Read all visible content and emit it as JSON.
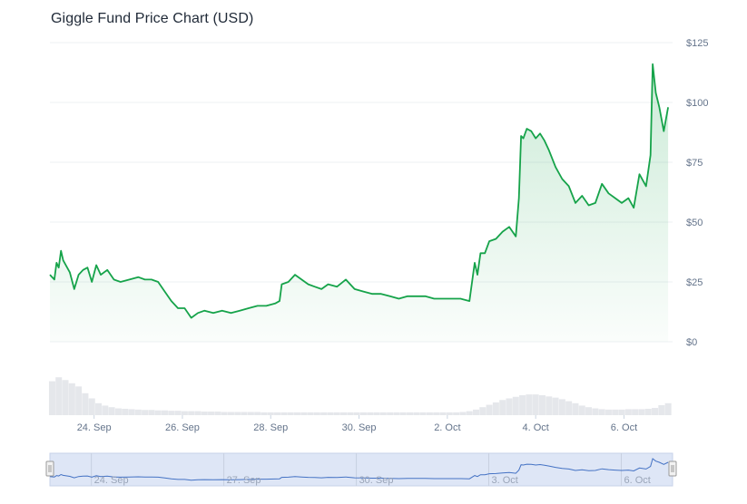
{
  "title": "Giggle Fund Price Chart (USD)",
  "colors": {
    "line": "#16a34a",
    "area_top": "#16a34a",
    "grid": "#eef0f3",
    "volume": "#e5e7eb",
    "navigator_fill": "#dbe4f5",
    "navigator_line": "#4472c4"
  },
  "chart_data": {
    "type": "area",
    "title": "Giggle Fund Price Chart (USD)",
    "xlabel": "",
    "ylabel": "",
    "ylim": [
      0,
      125
    ],
    "grid": true,
    "y_ticks": [
      0,
      25,
      50,
      75,
      100,
      125
    ],
    "y_tick_labels": [
      "$0",
      "$25",
      "$50",
      "$75",
      "$100",
      "$125"
    ],
    "x_ticks": [
      "24. Sep",
      "26. Sep",
      "28. Sep",
      "30. Sep",
      "2. Oct",
      "4. Oct",
      "6. Oct"
    ],
    "x_ticks_pos": [
      1,
      3,
      5,
      7,
      9,
      11,
      13
    ],
    "x_range": [
      0,
      14.1
    ],
    "navigator_ticks": [
      "24. Sep",
      "27. Sep",
      "30. Sep",
      "3. Oct",
      "6. Oct"
    ],
    "navigator_ticks_pos": [
      1,
      4,
      7,
      10,
      13
    ],
    "series": [
      {
        "x": [
          0,
          0.1,
          0.15,
          0.2,
          0.25,
          0.3,
          0.45,
          0.55,
          0.65,
          0.75,
          0.85,
          0.95,
          1.05,
          1.15,
          1.3,
          1.45,
          1.6,
          1.8,
          2.0,
          2.15,
          2.3,
          2.45,
          2.6,
          2.75,
          2.9,
          3.05,
          3.2,
          3.35,
          3.5,
          3.7,
          3.9,
          4.1,
          4.3,
          4.5,
          4.7,
          4.9,
          5.1,
          5.2,
          5.25,
          5.4,
          5.55,
          5.7,
          5.85,
          6.0,
          6.15,
          6.3,
          6.5,
          6.7,
          6.9,
          7.1,
          7.3,
          7.5,
          7.7,
          7.9,
          8.1,
          8.3,
          8.5,
          8.7,
          8.9,
          9.1,
          9.3,
          9.5,
          9.62,
          9.68,
          9.75,
          9.85,
          9.95,
          10.1,
          10.25,
          10.4,
          10.55,
          10.62,
          10.67,
          10.72,
          10.8,
          10.9,
          11.0,
          11.1,
          11.2,
          11.3,
          11.45,
          11.6,
          11.75,
          11.9,
          12.05,
          12.2,
          12.35,
          12.5,
          12.65,
          12.8,
          12.95,
          13.1,
          13.22,
          13.35,
          13.5,
          13.6,
          13.65,
          13.72,
          13.8,
          13.9,
          14.0
        ],
        "values": [
          28,
          26,
          33,
          31,
          38,
          34,
          29,
          22,
          28,
          30,
          31,
          25,
          32,
          28,
          30,
          26,
          25,
          26,
          27,
          26,
          26,
          25,
          21,
          17,
          14,
          14,
          10,
          12,
          13,
          12,
          13,
          12,
          13,
          14,
          15,
          15,
          16,
          17,
          24,
          25,
          28,
          26,
          24,
          23,
          22,
          24,
          23,
          26,
          22,
          21,
          20,
          20,
          19,
          18,
          19,
          19,
          19,
          18,
          18,
          18,
          18,
          17,
          33,
          28,
          37,
          37,
          42,
          43,
          46,
          48,
          44,
          60,
          86,
          85,
          89,
          88,
          85,
          87,
          84,
          80,
          73,
          68,
          65,
          58,
          61,
          57,
          58,
          66,
          62,
          60,
          58,
          60,
          56,
          70,
          65,
          78,
          116,
          104,
          98,
          88,
          98
        ]
      }
    ],
    "volume": [
      {
        "x": 0.05,
        "v": 0.85
      },
      {
        "x": 0.2,
        "v": 0.95
      },
      {
        "x": 0.35,
        "v": 0.88
      },
      {
        "x": 0.5,
        "v": 0.8
      },
      {
        "x": 0.65,
        "v": 0.72
      },
      {
        "x": 0.8,
        "v": 0.55
      },
      {
        "x": 0.95,
        "v": 0.42
      },
      {
        "x": 1.1,
        "v": 0.3
      },
      {
        "x": 1.25,
        "v": 0.24
      },
      {
        "x": 1.4,
        "v": 0.2
      },
      {
        "x": 1.55,
        "v": 0.17
      },
      {
        "x": 1.7,
        "v": 0.16
      },
      {
        "x": 1.85,
        "v": 0.15
      },
      {
        "x": 2.0,
        "v": 0.14
      },
      {
        "x": 2.15,
        "v": 0.13
      },
      {
        "x": 2.3,
        "v": 0.13
      },
      {
        "x": 2.45,
        "v": 0.12
      },
      {
        "x": 2.6,
        "v": 0.12
      },
      {
        "x": 2.75,
        "v": 0.11
      },
      {
        "x": 2.9,
        "v": 0.11
      },
      {
        "x": 3.05,
        "v": 0.1
      },
      {
        "x": 3.2,
        "v": 0.1
      },
      {
        "x": 3.35,
        "v": 0.1
      },
      {
        "x": 3.5,
        "v": 0.09
      },
      {
        "x": 3.65,
        "v": 0.09
      },
      {
        "x": 3.8,
        "v": 0.09
      },
      {
        "x": 3.95,
        "v": 0.08
      },
      {
        "x": 4.1,
        "v": 0.08
      },
      {
        "x": 4.25,
        "v": 0.08
      },
      {
        "x": 4.4,
        "v": 0.08
      },
      {
        "x": 4.55,
        "v": 0.08
      },
      {
        "x": 4.7,
        "v": 0.08
      },
      {
        "x": 4.85,
        "v": 0.07
      },
      {
        "x": 5.0,
        "v": 0.07
      },
      {
        "x": 5.15,
        "v": 0.07
      },
      {
        "x": 5.3,
        "v": 0.07
      },
      {
        "x": 5.45,
        "v": 0.07
      },
      {
        "x": 5.6,
        "v": 0.07
      },
      {
        "x": 5.75,
        "v": 0.07
      },
      {
        "x": 5.9,
        "v": 0.07
      },
      {
        "x": 6.05,
        "v": 0.07
      },
      {
        "x": 6.2,
        "v": 0.07
      },
      {
        "x": 6.35,
        "v": 0.07
      },
      {
        "x": 6.5,
        "v": 0.07
      },
      {
        "x": 6.65,
        "v": 0.07
      },
      {
        "x": 6.8,
        "v": 0.07
      },
      {
        "x": 6.95,
        "v": 0.07
      },
      {
        "x": 7.1,
        "v": 0.07
      },
      {
        "x": 7.25,
        "v": 0.07
      },
      {
        "x": 7.4,
        "v": 0.07
      },
      {
        "x": 7.55,
        "v": 0.07
      },
      {
        "x": 7.7,
        "v": 0.07
      },
      {
        "x": 7.85,
        "v": 0.07
      },
      {
        "x": 8.0,
        "v": 0.07
      },
      {
        "x": 8.15,
        "v": 0.07
      },
      {
        "x": 8.3,
        "v": 0.07
      },
      {
        "x": 8.45,
        "v": 0.07
      },
      {
        "x": 8.6,
        "v": 0.07
      },
      {
        "x": 8.75,
        "v": 0.07
      },
      {
        "x": 8.9,
        "v": 0.07
      },
      {
        "x": 9.05,
        "v": 0.07
      },
      {
        "x": 9.2,
        "v": 0.07
      },
      {
        "x": 9.35,
        "v": 0.08
      },
      {
        "x": 9.5,
        "v": 0.1
      },
      {
        "x": 9.65,
        "v": 0.14
      },
      {
        "x": 9.8,
        "v": 0.2
      },
      {
        "x": 9.95,
        "v": 0.26
      },
      {
        "x": 10.1,
        "v": 0.32
      },
      {
        "x": 10.25,
        "v": 0.38
      },
      {
        "x": 10.4,
        "v": 0.42
      },
      {
        "x": 10.55,
        "v": 0.46
      },
      {
        "x": 10.7,
        "v": 0.5
      },
      {
        "x": 10.85,
        "v": 0.52
      },
      {
        "x": 11.0,
        "v": 0.52
      },
      {
        "x": 11.15,
        "v": 0.5
      },
      {
        "x": 11.3,
        "v": 0.47
      },
      {
        "x": 11.45,
        "v": 0.44
      },
      {
        "x": 11.6,
        "v": 0.4
      },
      {
        "x": 11.75,
        "v": 0.35
      },
      {
        "x": 11.9,
        "v": 0.3
      },
      {
        "x": 12.05,
        "v": 0.24
      },
      {
        "x": 12.2,
        "v": 0.2
      },
      {
        "x": 12.35,
        "v": 0.17
      },
      {
        "x": 12.5,
        "v": 0.15
      },
      {
        "x": 12.65,
        "v": 0.14
      },
      {
        "x": 12.8,
        "v": 0.14
      },
      {
        "x": 12.95,
        "v": 0.14
      },
      {
        "x": 13.1,
        "v": 0.15
      },
      {
        "x": 13.25,
        "v": 0.15
      },
      {
        "x": 13.4,
        "v": 0.15
      },
      {
        "x": 13.55,
        "v": 0.16
      },
      {
        "x": 13.7,
        "v": 0.18
      },
      {
        "x": 13.85,
        "v": 0.25
      },
      {
        "x": 14.0,
        "v": 0.3
      }
    ]
  }
}
